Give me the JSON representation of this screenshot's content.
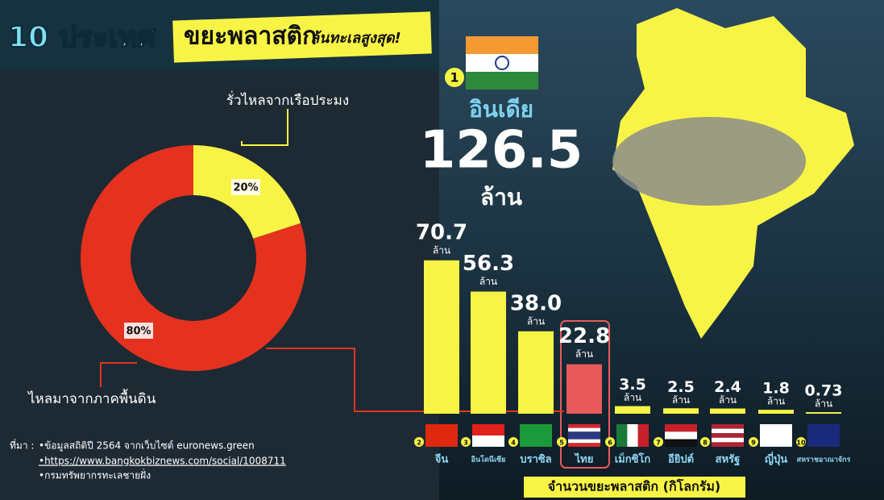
{
  "title": "10 ประเทศ",
  "subtitle": "ขยะพลาสติก",
  "subtitle_tail": "ล้นทะเลสูงสุด!",
  "chart_data": [
    {
      "type": "donut",
      "categories": [
        "รั่วไหลจากเรือประมง",
        "ไหลมาจากภาคพื้นดิน"
      ],
      "values": [
        20,
        80
      ],
      "value_labels": [
        "20%",
        "80%"
      ],
      "colors": [
        "#f8f445",
        "#e4321f"
      ]
    },
    {
      "type": "bar",
      "title": "จำนวนขยะพลาสติก (กิโลกรัม)",
      "unit": "ล้าน",
      "top": {
        "rank": 1,
        "name": "อินเดีย",
        "value": 126.5
      },
      "ranks": [
        2,
        3,
        4,
        5,
        6,
        7,
        8,
        9,
        10
      ],
      "categories": [
        "จีน",
        "อินโดนีเซีย",
        "บราซิล",
        "ไทย",
        "เม็กซิโก",
        "อียิปต์",
        "สหรัฐ",
        "ญี่ปุ่น",
        "สหราชอาณาจักร"
      ],
      "values": [
        70.7,
        56.3,
        38.0,
        22.8,
        3.5,
        2.5,
        2.4,
        1.8,
        0.73
      ],
      "value_labels": [
        "70.7",
        "56.3",
        "38.0",
        "22.8",
        "3.5",
        "2.5",
        "2.4",
        "1.8",
        "0.73"
      ],
      "colors": [
        "#f8f445",
        "#f8f445",
        "#f8f445",
        "#e85a5a",
        "#f8f445",
        "#f8f445",
        "#f8f445",
        "#f8f445",
        "#f8f445"
      ]
    }
  ],
  "sources": {
    "label": "ที่มา :",
    "items": [
      "•ข้อมูลสถิติปี 2564  จากเว็บไซต์ euronews.green",
      "•https://www.bangkokbiznews.com/social/1008711",
      "•กรมทรัพยากรทะเลชายฝั่ง"
    ]
  }
}
